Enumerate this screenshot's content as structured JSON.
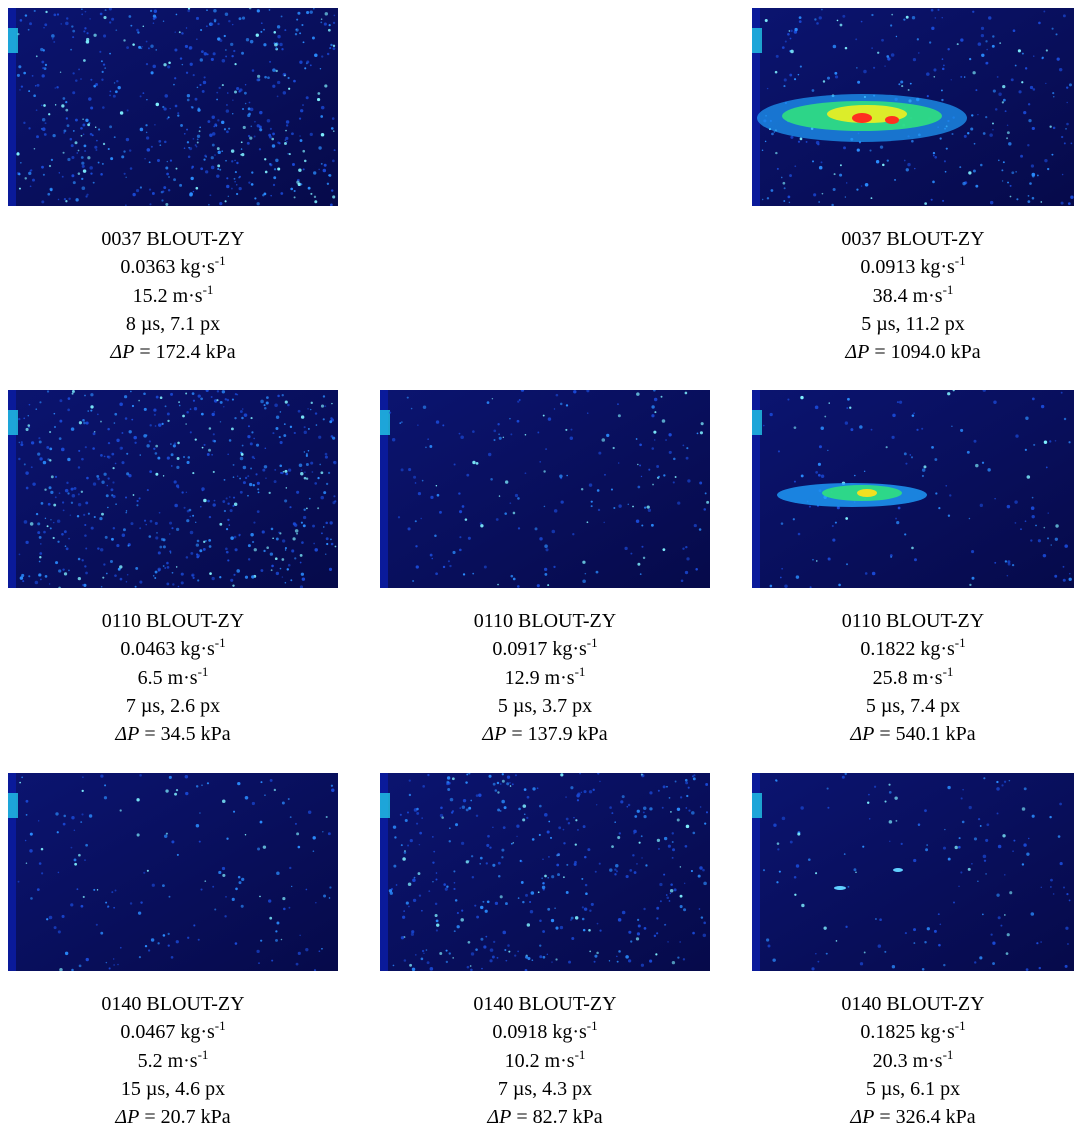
{
  "panels": [
    [
      {
        "id": "0037 BLOUT-ZY",
        "flow": "0.0363 kg·s",
        "flow_exp": "-1",
        "velocity": "15.2 m·s",
        "velocity_exp": "-1",
        "exposure": "8 µs, 7.1 px",
        "dp_symbol": "ΔP",
        "dp": "= 172.4 kPa"
      },
      null,
      {
        "id": "0037 BLOUT-ZY",
        "flow": "0.0913 kg·s",
        "flow_exp": "-1",
        "velocity": "38.4 m·s",
        "velocity_exp": "-1",
        "exposure": "5 µs, 11.2 px",
        "dp_symbol": "ΔP",
        "dp": "= 1094.0 kPa"
      }
    ],
    [
      {
        "id": "0110 BLOUT-ZY",
        "flow": "0.0463 kg·s",
        "flow_exp": "-1",
        "velocity": "6.5 m·s",
        "velocity_exp": "-1",
        "exposure": "7 µs, 2.6 px",
        "dp_symbol": "ΔP",
        "dp": "= 34.5 kPa"
      },
      {
        "id": "0110 BLOUT-ZY",
        "flow": "0.0917 kg·s",
        "flow_exp": "-1",
        "velocity": "12.9 m·s",
        "velocity_exp": "-1",
        "exposure": "5 µs, 3.7 px",
        "dp_symbol": "ΔP",
        "dp": "= 137.9 kPa"
      },
      {
        "id": "0110 BLOUT-ZY",
        "flow": "0.1822 kg·s",
        "flow_exp": "-1",
        "velocity": "25.8 m·s",
        "velocity_exp": "-1",
        "exposure": "5 µs, 7.4 px",
        "dp_symbol": "ΔP",
        "dp": "= 540.1 kPa"
      }
    ],
    [
      {
        "id": "0140 BLOUT-ZY",
        "flow": "0.0467 kg·s",
        "flow_exp": "-1",
        "velocity": "5.2 m·s",
        "velocity_exp": "-1",
        "exposure": "15 µs, 4.6 px",
        "dp_symbol": "ΔP",
        "dp": "= 20.7 kPa"
      },
      {
        "id": "0140 BLOUT-ZY",
        "flow": "0.0918 kg·s",
        "flow_exp": "-1",
        "velocity": "10.2 m·s",
        "velocity_exp": "-1",
        "exposure": "7 µs, 4.3 px",
        "dp_symbol": "ΔP",
        "dp": "= 82.7 kPa"
      },
      {
        "id": "0140 BLOUT-ZY",
        "flow": "0.1825 kg·s",
        "flow_exp": "-1",
        "velocity": "20.3 m·s",
        "velocity_exp": "-1",
        "exposure": "5 µs, 6.1 px",
        "dp_symbol": "ΔP",
        "dp": "= 326.4 kPa"
      }
    ]
  ]
}
